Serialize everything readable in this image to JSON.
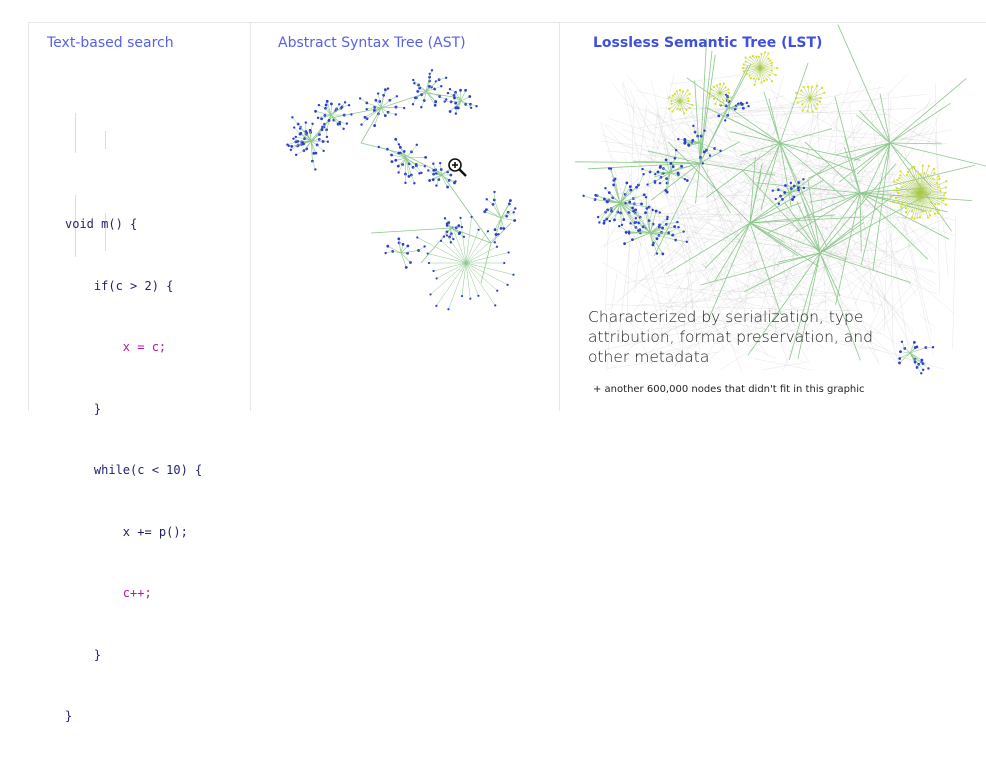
{
  "panels": {
    "text_search": {
      "title": "Text-based search",
      "code_lines": [
        "void m() {",
        "    if(c > 2) {",
        "        x = c;",
        "    }",
        "    while(c < 10) {",
        "        x += p();",
        "        c++;",
        "    }",
        "}"
      ]
    },
    "ast": {
      "title": "Abstract Syntax Tree (AST)"
    },
    "lst": {
      "title": "Lossless Semantic Tree (LST)",
      "caption": "Characterized by serialization, type attribution, format preservation, and other metadata",
      "footnote": "+ another 600,000 nodes that didn't fit in this graphic"
    }
  },
  "icons": {
    "zoom": "zoom-in-icon"
  },
  "colors": {
    "title": "#5562e8",
    "node_blue": "#2a3fd0",
    "edge_green": "#7fbf7f",
    "node_yellow": "#d8e020"
  }
}
